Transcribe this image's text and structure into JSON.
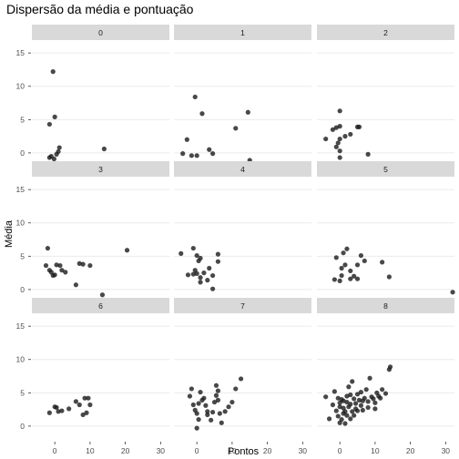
{
  "chart_data": {
    "type": "scatter",
    "title": "Dispersão da média e pontuação",
    "xlabel": "Pontos",
    "ylabel": "Média",
    "xlim": [
      -6.5,
      32.5
    ],
    "ylim": [
      -2.2,
      16.8
    ],
    "x_ticks": [
      0,
      10,
      20,
      30
    ],
    "y_ticks": [
      0,
      5,
      10,
      15
    ],
    "grid": true,
    "facet_rows": 3,
    "facet_cols": 3,
    "point_color": "#1a1a1a",
    "point_opacity": 0.8,
    "strip_color": "#d9d9d9",
    "grid_color": "#ebebeb",
    "facets": [
      {
        "label": "0",
        "points": [
          [
            -1.5,
            4.3
          ],
          [
            -0.5,
            12.2
          ],
          [
            0,
            5.4
          ],
          [
            1,
            0.2
          ],
          [
            1.3,
            0.8
          ],
          [
            14,
            0.6
          ],
          [
            -1.5,
            -0.7
          ],
          [
            -1,
            -0.5
          ],
          [
            -0.2,
            -0.9
          ],
          [
            0.5,
            -0.2
          ]
        ]
      },
      {
        "label": "1",
        "points": [
          [
            -2.8,
            2
          ],
          [
            -4,
            -0.1
          ],
          [
            -0.5,
            8.4
          ],
          [
            1.5,
            5.9
          ],
          [
            0,
            -0.4
          ],
          [
            -1.5,
            -0.4
          ],
          [
            3.5,
            0.5
          ],
          [
            4.5,
            -0.1
          ],
          [
            11,
            3.7
          ],
          [
            14.5,
            6.1
          ],
          [
            15,
            -1.1
          ]
        ]
      },
      {
        "label": "2",
        "points": [
          [
            -4,
            2.1
          ],
          [
            -2,
            3.5
          ],
          [
            -1,
            3.8
          ],
          [
            0,
            6.3
          ],
          [
            0,
            4
          ],
          [
            0,
            2.1
          ],
          [
            -0.5,
            1.5
          ],
          [
            -1,
            0.9
          ],
          [
            0,
            0.3
          ],
          [
            0,
            -0.7
          ],
          [
            1.5,
            2.5
          ],
          [
            3,
            2.8
          ],
          [
            5,
            3.9
          ],
          [
            5.5,
            3.9
          ],
          [
            8,
            -0.2
          ]
        ]
      },
      {
        "label": "3",
        "points": [
          [
            -2,
            6.2
          ],
          [
            -2.5,
            3.6
          ],
          [
            -1.5,
            2.9
          ],
          [
            -1,
            2.6
          ],
          [
            0,
            2.2
          ],
          [
            0.5,
            3.7
          ],
          [
            1.5,
            3.6
          ],
          [
            2,
            2.9
          ],
          [
            3,
            2.6
          ],
          [
            -0.5,
            2.1
          ],
          [
            6,
            0.7
          ],
          [
            7,
            3.9
          ],
          [
            8,
            3.8
          ],
          [
            10,
            3.6
          ],
          [
            13.5,
            -0.8
          ],
          [
            20.5,
            5.9
          ]
        ]
      },
      {
        "label": "4",
        "points": [
          [
            -4.5,
            5.4
          ],
          [
            -2.5,
            2.2
          ],
          [
            -1,
            6.2
          ],
          [
            0,
            5.1
          ],
          [
            0.5,
            4.3
          ],
          [
            1,
            4.7
          ],
          [
            -0.5,
            2.9
          ],
          [
            -1,
            2.3
          ],
          [
            0,
            2.4
          ],
          [
            1,
            1.8
          ],
          [
            2,
            2.5
          ],
          [
            3,
            1.4
          ],
          [
            3.5,
            3.2
          ],
          [
            4.5,
            0.1
          ],
          [
            4.5,
            2.1
          ],
          [
            6,
            4.2
          ],
          [
            6,
            5.3
          ],
          [
            1,
            1.1
          ]
        ]
      },
      {
        "label": "5",
        "points": [
          [
            -1.5,
            1.5
          ],
          [
            -1,
            4.8
          ],
          [
            0,
            1.3
          ],
          [
            0.5,
            2.1
          ],
          [
            1,
            5.5
          ],
          [
            1.5,
            3.7
          ],
          [
            2,
            6.1
          ],
          [
            3,
            2.8
          ],
          [
            3,
            1.6
          ],
          [
            4,
            2
          ],
          [
            5,
            1.6
          ],
          [
            5,
            3.7
          ],
          [
            6,
            5.1
          ],
          [
            7,
            4.3
          ],
          [
            12,
            4.1
          ],
          [
            14,
            1.9
          ],
          [
            32,
            -0.4
          ],
          [
            0.5,
            3.2
          ]
        ]
      },
      {
        "label": "6",
        "points": [
          [
            -1.5,
            2
          ],
          [
            0,
            2.9
          ],
          [
            0.5,
            2.8
          ],
          [
            2,
            2.3
          ],
          [
            4,
            2.6
          ],
          [
            6,
            3.7
          ],
          [
            7,
            3.2
          ],
          [
            8,
            1.7
          ],
          [
            9,
            2
          ],
          [
            9.5,
            4.2
          ],
          [
            10,
            3.2
          ],
          [
            8.5,
            4.2
          ],
          [
            1,
            2.2
          ]
        ]
      },
      {
        "label": "7",
        "points": [
          [
            -2,
            4.5
          ],
          [
            -1.5,
            5.6
          ],
          [
            0,
            -0.3
          ],
          [
            -1,
            3.2
          ],
          [
            -0.5,
            2.4
          ],
          [
            0,
            1.9
          ],
          [
            0.5,
            1
          ],
          [
            1,
            5.1
          ],
          [
            1.5,
            3.9
          ],
          [
            2,
            4.2
          ],
          [
            3,
            2.2
          ],
          [
            3,
            1.7
          ],
          [
            4,
            0.9
          ],
          [
            4.5,
            2.1
          ],
          [
            5,
            3.6
          ],
          [
            5.5,
            4.6
          ],
          [
            5.5,
            6.1
          ],
          [
            6,
            5.3
          ],
          [
            6,
            3.9
          ],
          [
            6.5,
            1.9
          ],
          [
            7,
            0.5
          ],
          [
            8,
            2.2
          ],
          [
            9,
            2.9
          ],
          [
            10,
            3.6
          ],
          [
            11,
            5.6
          ],
          [
            12.5,
            7.1
          ],
          [
            0.5,
            3.4
          ],
          [
            2.5,
            3.1
          ]
        ]
      },
      {
        "label": "8",
        "points": [
          [
            -4,
            4.4
          ],
          [
            -3,
            1.1
          ],
          [
            -2,
            3.2
          ],
          [
            -1.5,
            5.2
          ],
          [
            -1,
            2.3
          ],
          [
            -0.5,
            1.5
          ],
          [
            0,
            0.5
          ],
          [
            0,
            3.5
          ],
          [
            0.5,
            4
          ],
          [
            0.5,
            1
          ],
          [
            1,
            2.7
          ],
          [
            1,
            3.8
          ],
          [
            1.5,
            0.4
          ],
          [
            1.5,
            2.2
          ],
          [
            2,
            1.6
          ],
          [
            2,
            4.5
          ],
          [
            2.5,
            2.9
          ],
          [
            2.5,
            5.9
          ],
          [
            3,
            1.1
          ],
          [
            3,
            3.3
          ],
          [
            3.5,
            2.2
          ],
          [
            3.5,
            6.7
          ],
          [
            4,
            4.1
          ],
          [
            4,
            1.6
          ],
          [
            4.5,
            3.4
          ],
          [
            4.5,
            2.6
          ],
          [
            5,
            4.8
          ],
          [
            5.5,
            3.9
          ],
          [
            6,
            3.1
          ],
          [
            6,
            5.1
          ],
          [
            6.5,
            2.4
          ],
          [
            7,
            4.2
          ],
          [
            7.5,
            5.5
          ],
          [
            8,
            3.7
          ],
          [
            8.5,
            7.2
          ],
          [
            9,
            4.4
          ],
          [
            9.5,
            4.1
          ],
          [
            10,
            3.5
          ],
          [
            10.5,
            5
          ],
          [
            11,
            4.5
          ],
          [
            11.5,
            4.2
          ],
          [
            12,
            5.5
          ],
          [
            13,
            4.9
          ],
          [
            14,
            8.5
          ],
          [
            14.3,
            8.9
          ],
          [
            0,
            2.9
          ],
          [
            1,
            1.9
          ],
          [
            2,
            3.6
          ],
          [
            5,
            2.3
          ],
          [
            -0.5,
            4.2
          ],
          [
            3,
            4.7
          ],
          [
            8,
            2.8
          ],
          [
            10,
            2.6
          ],
          [
            6.5,
            3.8
          ]
        ]
      }
    ]
  }
}
